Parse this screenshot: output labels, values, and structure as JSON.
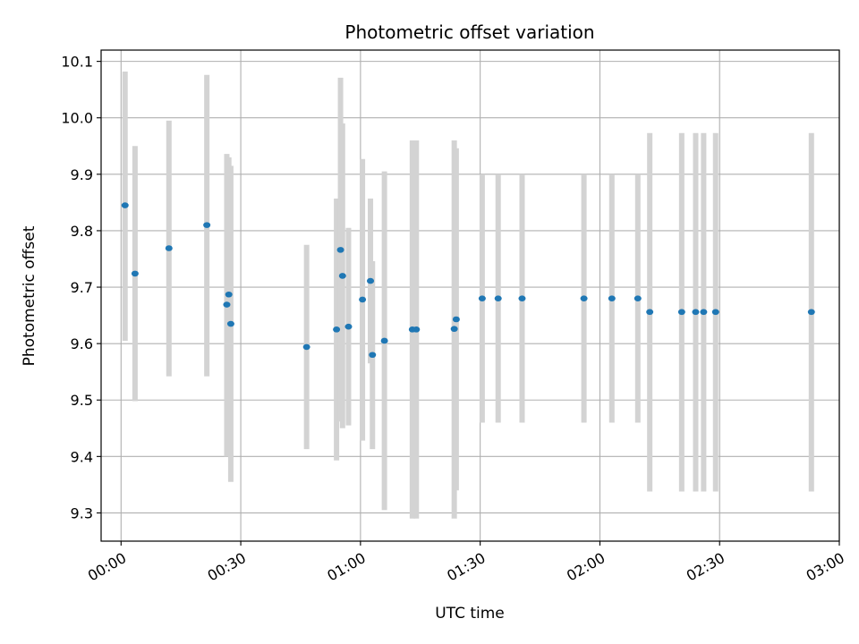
{
  "chart_data": {
    "type": "scatter",
    "title": "Photometric offset variation",
    "xlabel": "UTC time",
    "ylabel": "Photometric offset",
    "x_unit": "UTC time (HH:MM)",
    "xlim": [
      "-00:05",
      "03:00"
    ],
    "ylim": [
      9.25,
      10.12
    ],
    "x_ticks": [
      "00:00",
      "00:30",
      "01:00",
      "01:30",
      "02:00",
      "02:30",
      "03:00"
    ],
    "y_ticks": [
      "9.3",
      "9.4",
      "9.5",
      "9.6",
      "9.7",
      "9.8",
      "9.9",
      "10.0",
      "10.1"
    ],
    "grid": true,
    "marker_color": "#1f77b4",
    "errorbar_color": "#d3d3d3",
    "points": [
      {
        "x": "00:01",
        "y": 9.845,
        "ylow": 9.605,
        "yhigh": 10.082
      },
      {
        "x": "00:03.5",
        "y": 9.724,
        "ylow": 9.498,
        "yhigh": 9.95
      },
      {
        "x": "00:12",
        "y": 9.769,
        "ylow": 9.542,
        "yhigh": 9.995
      },
      {
        "x": "00:21.5",
        "y": 9.81,
        "ylow": 9.542,
        "yhigh": 10.076
      },
      {
        "x": "00:26.5",
        "y": 9.669,
        "ylow": 9.4,
        "yhigh": 9.936
      },
      {
        "x": "00:27",
        "y": 9.687,
        "ylow": 9.41,
        "yhigh": 9.93
      },
      {
        "x": "00:27.5",
        "y": 9.635,
        "ylow": 9.355,
        "yhigh": 9.915
      },
      {
        "x": "00:46.5",
        "y": 9.594,
        "ylow": 9.413,
        "yhigh": 9.775
      },
      {
        "x": "00:54",
        "y": 9.625,
        "ylow": 9.393,
        "yhigh": 9.857
      },
      {
        "x": "00:55",
        "y": 9.766,
        "ylow": 9.462,
        "yhigh": 10.071
      },
      {
        "x": "00:55.5",
        "y": 9.72,
        "ylow": 9.45,
        "yhigh": 9.99
      },
      {
        "x": "00:57",
        "y": 9.63,
        "ylow": 9.455,
        "yhigh": 9.805
      },
      {
        "x": "01:00.5",
        "y": 9.678,
        "ylow": 9.428,
        "yhigh": 9.927
      },
      {
        "x": "01:02.5",
        "y": 9.711,
        "ylow": 9.565,
        "yhigh": 9.857
      },
      {
        "x": "01:03",
        "y": 9.58,
        "ylow": 9.413,
        "yhigh": 9.746
      },
      {
        "x": "01:06",
        "y": 9.605,
        "ylow": 9.305,
        "yhigh": 9.905
      },
      {
        "x": "01:13",
        "y": 9.625,
        "ylow": 9.29,
        "yhigh": 9.96
      },
      {
        "x": "01:14",
        "y": 9.625,
        "ylow": 9.29,
        "yhigh": 9.96
      },
      {
        "x": "01:23.5",
        "y": 9.626,
        "ylow": 9.29,
        "yhigh": 9.96
      },
      {
        "x": "01:24",
        "y": 9.643,
        "ylow": 9.34,
        "yhigh": 9.946
      },
      {
        "x": "01:30.5",
        "y": 9.68,
        "ylow": 9.46,
        "yhigh": 9.9
      },
      {
        "x": "01:34.5",
        "y": 9.68,
        "ylow": 9.46,
        "yhigh": 9.9
      },
      {
        "x": "01:40.5",
        "y": 9.68,
        "ylow": 9.46,
        "yhigh": 9.9
      },
      {
        "x": "01:56",
        "y": 9.68,
        "ylow": 9.46,
        "yhigh": 9.9
      },
      {
        "x": "02:03",
        "y": 9.68,
        "ylow": 9.46,
        "yhigh": 9.9
      },
      {
        "x": "02:09.5",
        "y": 9.68,
        "ylow": 9.46,
        "yhigh": 9.9
      },
      {
        "x": "02:12.5",
        "y": 9.656,
        "ylow": 9.338,
        "yhigh": 9.973
      },
      {
        "x": "02:20.5",
        "y": 9.656,
        "ylow": 9.338,
        "yhigh": 9.973
      },
      {
        "x": "02:24",
        "y": 9.656,
        "ylow": 9.338,
        "yhigh": 9.973
      },
      {
        "x": "02:26",
        "y": 9.656,
        "ylow": 9.338,
        "yhigh": 9.973
      },
      {
        "x": "02:29",
        "y": 9.656,
        "ylow": 9.338,
        "yhigh": 9.973
      },
      {
        "x": "02:53",
        "y": 9.656,
        "ylow": 9.338,
        "yhigh": 9.973
      }
    ]
  }
}
